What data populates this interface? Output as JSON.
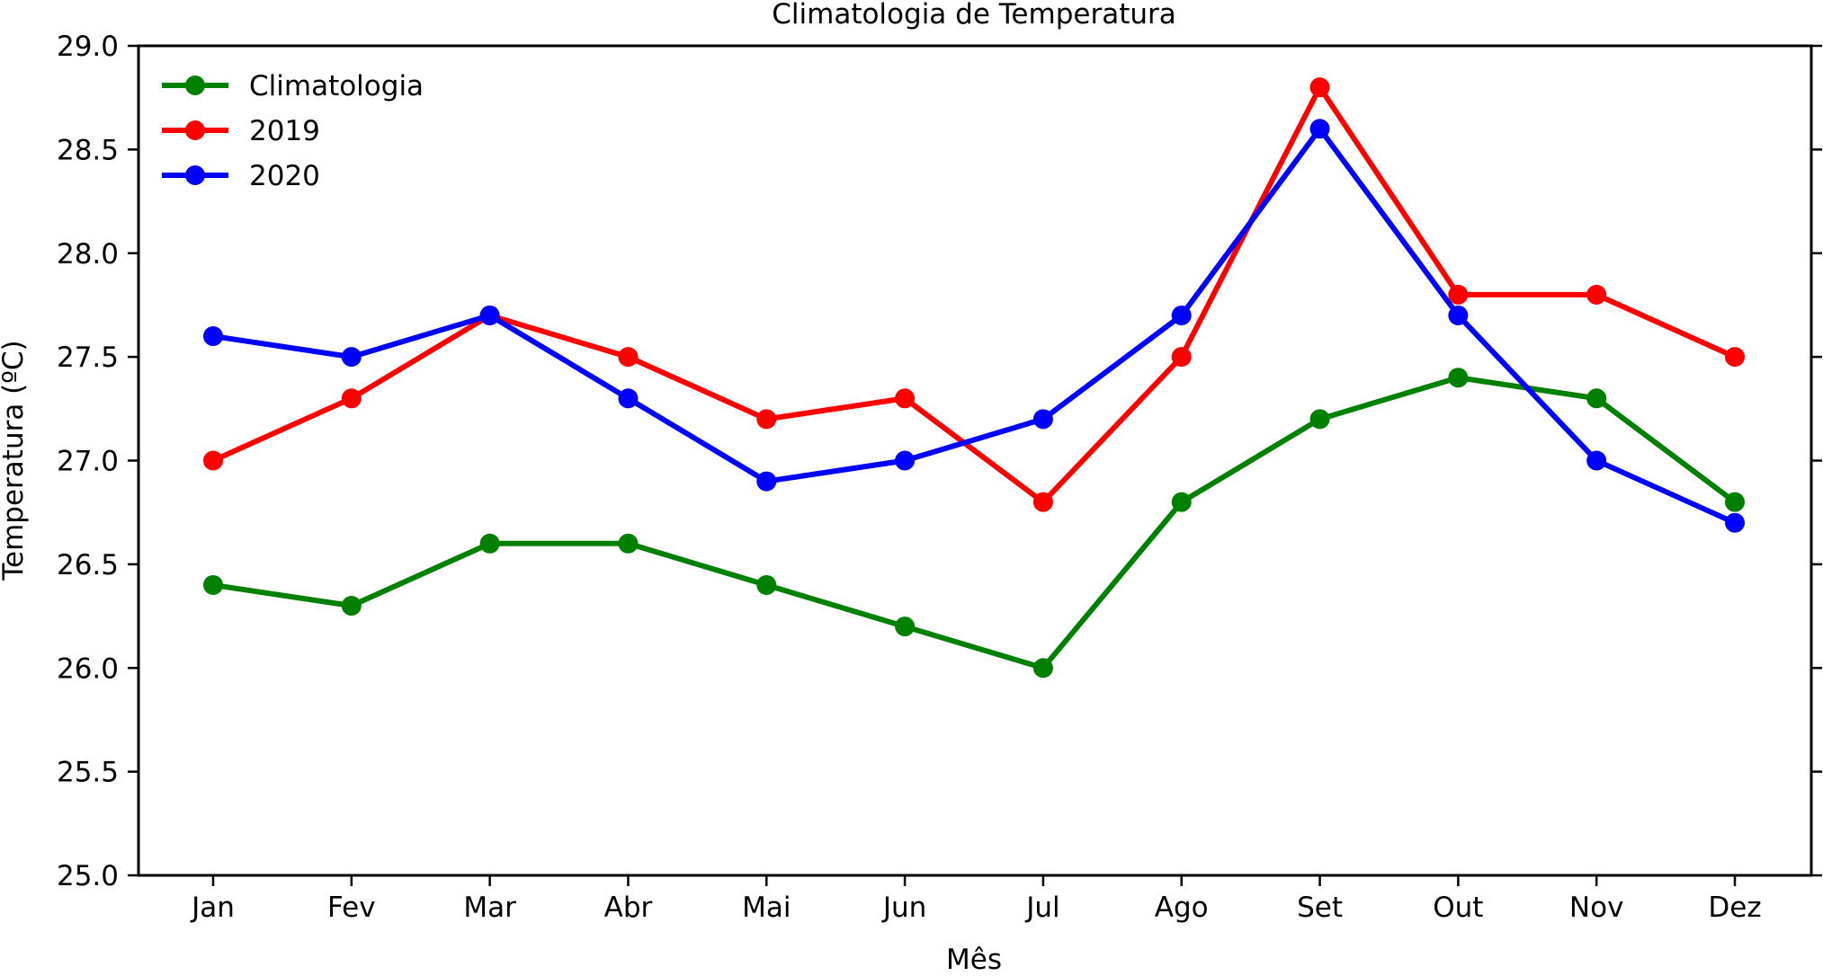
{
  "chart_data": {
    "type": "line",
    "title": "Climatologia de Temperatura",
    "xlabel": "Mês",
    "ylabel": "Temperatura (ºC)",
    "categories": [
      "Jan",
      "Fev",
      "Mar",
      "Abr",
      "Mai",
      "Jun",
      "Jul",
      "Ago",
      "Set",
      "Out",
      "Nov",
      "Dez"
    ],
    "ylim": [
      25.0,
      29.0
    ],
    "yticks": [
      "25.0",
      "25.5",
      "26.0",
      "26.5",
      "27.0",
      "27.5",
      "28.0",
      "28.5",
      "29.0"
    ],
    "grid": false,
    "legend_position": "top-left",
    "series": [
      {
        "name": "Climatologia",
        "color": "#008000",
        "values": [
          26.4,
          26.3,
          26.6,
          26.6,
          26.4,
          26.2,
          26.0,
          26.8,
          27.2,
          27.4,
          27.3,
          26.8
        ]
      },
      {
        "name": "2019",
        "color": "#ff0000",
        "values": [
          27.0,
          27.3,
          27.7,
          27.5,
          27.2,
          27.3,
          26.8,
          27.5,
          28.8,
          27.8,
          27.8,
          27.5
        ]
      },
      {
        "name": "2020",
        "color": "#0000ff",
        "values": [
          27.6,
          27.5,
          27.7,
          27.3,
          26.9,
          27.0,
          27.2,
          27.7,
          28.6,
          27.7,
          27.0,
          26.7
        ]
      }
    ]
  }
}
